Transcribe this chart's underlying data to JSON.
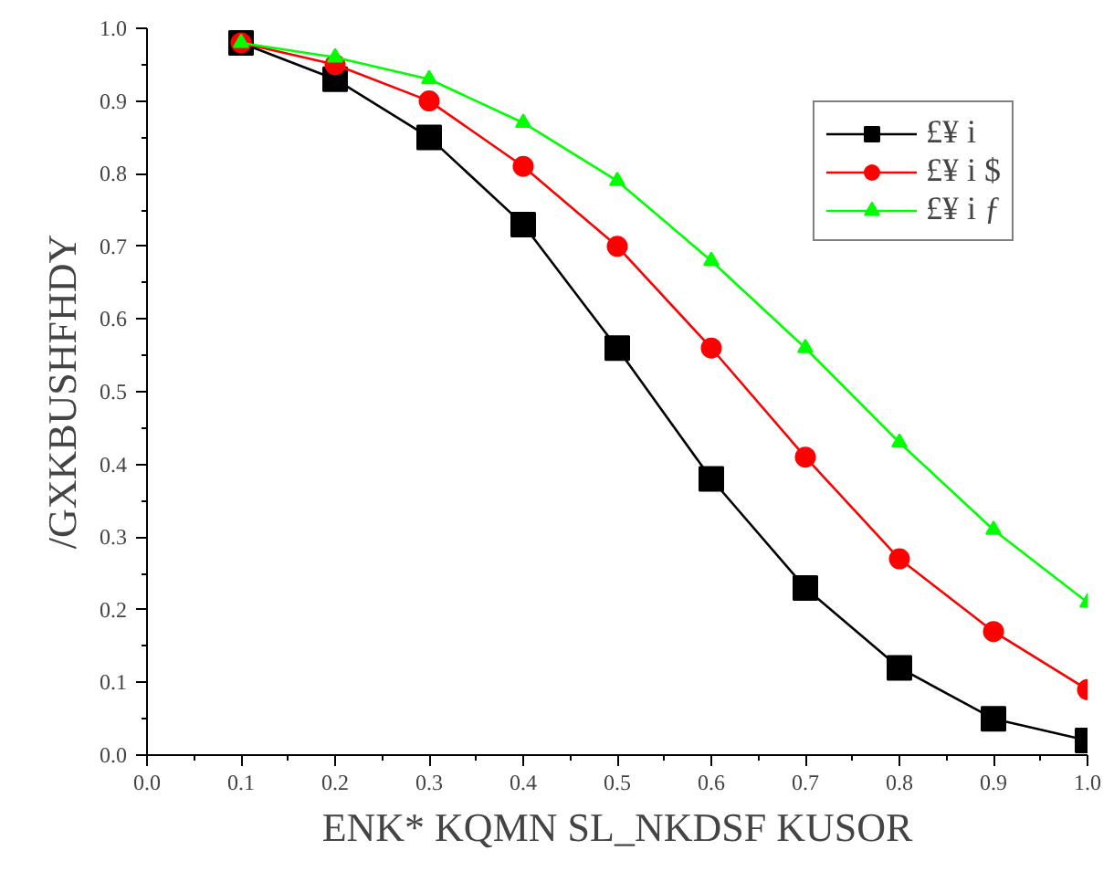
{
  "chart_data": {
    "type": "line",
    "xlabel": "ENK* KQMN SL_NKDSF KUSOR",
    "ylabel": "/GXKBUSHFHDY",
    "x": [
      0.1,
      0.2,
      0.3,
      0.4,
      0.5,
      0.6,
      0.7,
      0.8,
      0.9,
      1.0
    ],
    "series": [
      {
        "name": "£¥ i",
        "color": "#000000",
        "marker": "square",
        "values": [
          0.98,
          0.93,
          0.85,
          0.73,
          0.56,
          0.38,
          0.23,
          0.12,
          0.05,
          0.02
        ]
      },
      {
        "name": "£¥ i $",
        "color": "#ff0000",
        "marker": "circle",
        "values": [
          0.98,
          0.95,
          0.9,
          0.81,
          0.7,
          0.56,
          0.41,
          0.27,
          0.17,
          0.09
        ]
      },
      {
        "name": "£¥ i ƒ",
        "color": "#00ff00",
        "marker": "triangle",
        "values": [
          0.98,
          0.96,
          0.93,
          0.87,
          0.79,
          0.68,
          0.56,
          0.43,
          0.31,
          0.21
        ]
      }
    ],
    "xlim": [
      0.0,
      1.0
    ],
    "ylim": [
      0.0,
      1.0
    ],
    "xticks": [
      {
        "value": 0.0,
        "label": "0.0"
      },
      {
        "value": 0.1,
        "label": "0.1"
      },
      {
        "value": 0.2,
        "label": "0.2"
      },
      {
        "value": 0.3,
        "label": "0.3"
      },
      {
        "value": 0.4,
        "label": "0.4"
      },
      {
        "value": 0.5,
        "label": "0.5"
      },
      {
        "value": 0.6,
        "label": "0.6"
      },
      {
        "value": 0.7,
        "label": "0.7"
      },
      {
        "value": 0.8,
        "label": "0.8"
      },
      {
        "value": 0.9,
        "label": "0.9"
      },
      {
        "value": 1.0,
        "label": "1.0"
      }
    ],
    "yticks": [
      {
        "value": 0.0,
        "label": "0.0"
      },
      {
        "value": 0.1,
        "label": "0.1"
      },
      {
        "value": 0.2,
        "label": "0.2"
      },
      {
        "value": 0.3,
        "label": "0.3"
      },
      {
        "value": 0.4,
        "label": "0.4"
      },
      {
        "value": 0.5,
        "label": "0.5"
      },
      {
        "value": 0.6,
        "label": "0.6"
      },
      {
        "value": 0.7,
        "label": "0.7"
      },
      {
        "value": 0.8,
        "label": "0.8"
      },
      {
        "value": 0.9,
        "label": "0.9"
      },
      {
        "value": 1.0,
        "label": "1.0"
      }
    ],
    "grid": false,
    "legend": "top right",
    "line_style": "solid"
  }
}
